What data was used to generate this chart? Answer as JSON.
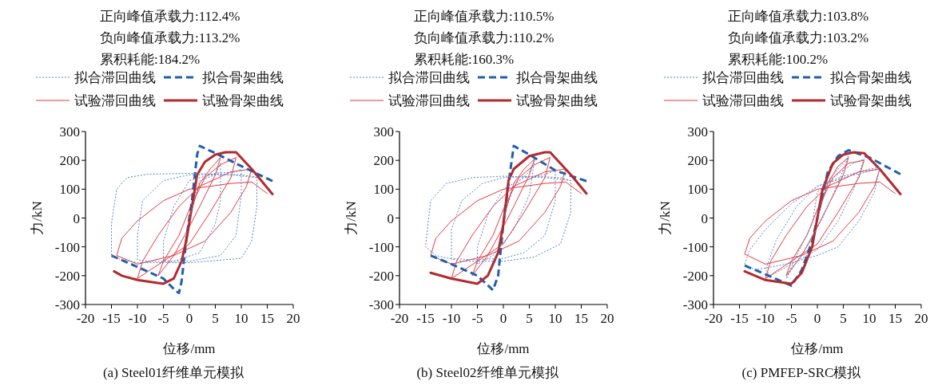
{
  "chart_data": [
    {
      "type": "line",
      "title": "(a) Steel01纤维单元模拟",
      "xlabel": "位移/mm",
      "ylabel": "力/kN",
      "annotations": [
        "正向峰值承载力:112.4%",
        "负向峰值承载力:113.2%",
        "累积耗能:184.2%"
      ],
      "xlim": [
        -20,
        20
      ],
      "ylim": [
        -300,
        300
      ],
      "xticks": [
        -20,
        -15,
        -10,
        -5,
        0,
        5,
        10,
        15,
        20
      ],
      "yticks": [
        -300,
        -200,
        -100,
        0,
        100,
        200,
        300
      ],
      "legend": "top",
      "series": [
        {
          "name": "拟合滞回曲线",
          "color": "#5b82c4",
          "line_style": "dotted",
          "x": [
            0,
            2,
            5,
            6,
            6,
            5,
            2,
            -3,
            -5,
            -5,
            -3,
            0,
            5,
            9,
            10,
            10,
            9,
            6,
            0,
            -8,
            -10,
            -10,
            -9,
            -5,
            0,
            10,
            12,
            13,
            13,
            12,
            10,
            0,
            -10,
            -14,
            -15,
            -15,
            -14,
            -12,
            -8,
            0,
            8,
            13
          ],
          "values": [
            0,
            130,
            150,
            190,
            60,
            -20,
            -120,
            -150,
            -150,
            -80,
            40,
            130,
            155,
            160,
            170,
            80,
            -60,
            -130,
            -150,
            -150,
            -145,
            -60,
            60,
            130,
            150,
            150,
            145,
            140,
            40,
            -80,
            -140,
            -155,
            -155,
            -140,
            -130,
            -20,
            100,
            140,
            152,
            155,
            150,
            140
          ]
        },
        {
          "name": "拟合骨架曲线",
          "color": "#1f5fad",
          "line_style": "dashed",
          "x": [
            -15,
            -10,
            -5,
            -2.5,
            -2,
            -1.5,
            -0.5,
            0.5,
            1.5,
            2,
            5,
            10,
            16
          ],
          "values": [
            -130,
            -170,
            -210,
            -255,
            -260,
            -220,
            -60,
            60,
            220,
            250,
            225,
            180,
            128
          ]
        },
        {
          "name": "试验滞回曲线",
          "color": "#e8393f",
          "line_style": "solid",
          "x": [
            0,
            2,
            4,
            6,
            5,
            2,
            0,
            -3,
            -6,
            -5,
            -2,
            0,
            3,
            6,
            9,
            8,
            4,
            0,
            -5,
            -10,
            -9,
            -6,
            -2,
            2,
            8,
            12,
            11,
            8,
            3,
            -3,
            -10,
            -14,
            -13,
            -10,
            -5,
            0,
            8,
            12,
            15
          ],
          "values": [
            0,
            120,
            170,
            210,
            150,
            40,
            -30,
            -130,
            -200,
            -150,
            -60,
            30,
            140,
            185,
            210,
            140,
            20,
            -90,
            -150,
            -210,
            -150,
            -60,
            40,
            110,
            160,
            170,
            110,
            20,
            -80,
            -130,
            -160,
            -130,
            -70,
            -10,
            60,
            100,
            120,
            125,
            85
          ]
        },
        {
          "name": "试验骨架曲线",
          "color": "#b22a2e",
          "line_style": "solid",
          "x": [
            -14.5,
            -13,
            -10,
            -5,
            -3,
            -1.5,
            -0.5,
            0.5,
            1.5,
            3,
            5,
            7,
            9,
            12,
            16
          ],
          "values": [
            -185,
            -200,
            -215,
            -228,
            -210,
            -150,
            -70,
            40,
            150,
            195,
            220,
            228,
            228,
            170,
            83
          ]
        }
      ]
    },
    {
      "type": "line",
      "title": "(b) Steel02纤维单元模拟",
      "xlabel": "位移/mm",
      "ylabel": "力/kN",
      "annotations": [
        "正向峰值承载力:110.5%",
        "负向峰值承载力:110.2%",
        "累积耗能:160.3%"
      ],
      "xlim": [
        -20,
        20
      ],
      "ylim": [
        -300,
        300
      ],
      "xticks": [
        -20,
        -15,
        -10,
        -5,
        0,
        5,
        10,
        15,
        20
      ],
      "yticks": [
        -300,
        -200,
        -100,
        0,
        100,
        200,
        300
      ],
      "legend": "top",
      "series": [
        {
          "name": "拟合滞回曲线",
          "color": "#5b82c4",
          "line_style": "dotted",
          "x": [
            0,
            2,
            5,
            6,
            5,
            2,
            -2,
            -5,
            -5,
            -3,
            0,
            4,
            8,
            10,
            10,
            8,
            4,
            0,
            -6,
            -10,
            -10,
            -8,
            -4,
            0,
            6,
            11,
            13,
            13,
            11,
            6,
            0,
            -8,
            -13,
            -15,
            -14,
            -11,
            -6,
            0,
            8,
            13
          ],
          "values": [
            0,
            110,
            160,
            200,
            80,
            -40,
            -130,
            -160,
            -100,
            10,
            100,
            140,
            150,
            165,
            60,
            -60,
            -120,
            -140,
            -145,
            -140,
            -40,
            60,
            120,
            140,
            145,
            140,
            130,
            20,
            -90,
            -135,
            -150,
            -150,
            -130,
            -100,
            60,
            120,
            140,
            145,
            140,
            130
          ]
        },
        {
          "name": "拟合骨架曲线",
          "color": "#1f5fad",
          "line_style": "dashed",
          "x": [
            -14,
            -10,
            -5,
            -2,
            -1,
            0,
            1,
            2,
            5,
            10,
            16
          ],
          "values": [
            -130,
            -160,
            -200,
            -250,
            -200,
            -20,
            120,
            250,
            220,
            165,
            128
          ]
        },
        {
          "name": "试验滞回曲线",
          "color": "#e8393f",
          "line_style": "solid",
          "x": [
            0,
            2,
            4,
            6,
            5,
            2,
            0,
            -3,
            -6,
            -5,
            -2,
            0,
            3,
            6,
            9,
            8,
            4,
            0,
            -5,
            -10,
            -9,
            -6,
            -2,
            2,
            8,
            12,
            11,
            8,
            3,
            -3,
            -10,
            -14,
            -13,
            -10,
            -5,
            0,
            8,
            12,
            15
          ],
          "values": [
            0,
            120,
            170,
            205,
            150,
            40,
            -30,
            -130,
            -200,
            -150,
            -60,
            30,
            140,
            185,
            210,
            140,
            20,
            -90,
            -150,
            -210,
            -150,
            -60,
            40,
            110,
            160,
            170,
            110,
            20,
            -80,
            -130,
            -160,
            -130,
            -70,
            -10,
            60,
            100,
            120,
            125,
            85
          ]
        },
        {
          "name": "试验骨架曲线",
          "color": "#b22a2e",
          "line_style": "solid",
          "x": [
            -14,
            -10,
            -5,
            -3,
            -1,
            0,
            1,
            2,
            5,
            8,
            9,
            13,
            16
          ],
          "values": [
            -190,
            -210,
            -228,
            -200,
            -120,
            -20,
            130,
            170,
            215,
            228,
            228,
            150,
            85
          ]
        }
      ]
    },
    {
      "type": "line",
      "title": "(c) PMFEP-SRC模拟",
      "xlabel": "位移/mm",
      "ylabel": "力/kN",
      "annotations": [
        "正向峰值承载力:103.8%",
        "负向峰值承载力:103.2%",
        "累积耗能:100.2%"
      ],
      "xlim": [
        -20,
        20
      ],
      "ylim": [
        -300,
        300
      ],
      "xticks": [
        -20,
        -15,
        -10,
        -5,
        0,
        5,
        10,
        15,
        20
      ],
      "yticks": [
        -300,
        -200,
        -100,
        0,
        100,
        200,
        300
      ],
      "legend": "top",
      "series": [
        {
          "name": "拟合滞回曲线",
          "color": "#5b82c4",
          "line_style": "dotted",
          "x": [
            0,
            2,
            5,
            6,
            4,
            1,
            -2,
            -5,
            -6,
            -4,
            -1,
            0,
            3,
            7,
            9,
            7,
            4,
            0,
            -4,
            -9,
            -10,
            -8,
            -4,
            0,
            5,
            10,
            12,
            11,
            8,
            4,
            0,
            -6,
            -12,
            -14,
            -13,
            -10,
            -5,
            0,
            6,
            12
          ],
          "values": [
            0,
            130,
            190,
            215,
            120,
            0,
            -100,
            -180,
            -210,
            -130,
            -20,
            90,
            140,
            190,
            205,
            100,
            -10,
            -110,
            -150,
            -200,
            -180,
            -80,
            40,
            110,
            145,
            170,
            175,
            90,
            -10,
            -100,
            -130,
            -160,
            -180,
            -160,
            -110,
            -40,
            50,
            110,
            145,
            170
          ]
        },
        {
          "name": "拟合骨架曲线",
          "color": "#1f5fad",
          "line_style": "dashed",
          "x": [
            -14,
            -10,
            -5,
            -3,
            -1,
            1,
            2,
            4,
            6,
            10,
            16
          ],
          "values": [
            -165,
            -195,
            -235,
            -180,
            -80,
            80,
            160,
            215,
            235,
            210,
            152
          ]
        },
        {
          "name": "试验滞回曲线",
          "color": "#e8393f",
          "line_style": "solid",
          "x": [
            0,
            2,
            4,
            6,
            5,
            2,
            0,
            -3,
            -6,
            -5,
            -2,
            0,
            3,
            6,
            9,
            8,
            4,
            0,
            -5,
            -10,
            -9,
            -6,
            -2,
            2,
            8,
            12,
            11,
            8,
            3,
            -3,
            -10,
            -14,
            -13,
            -10,
            -5,
            0,
            8,
            12,
            15
          ],
          "values": [
            0,
            120,
            180,
            210,
            150,
            40,
            -30,
            -130,
            -200,
            -150,
            -60,
            30,
            140,
            190,
            200,
            140,
            20,
            -90,
            -150,
            -210,
            -150,
            -60,
            40,
            110,
            160,
            170,
            110,
            20,
            -80,
            -130,
            -160,
            -125,
            -70,
            -10,
            60,
            100,
            120,
            125,
            85
          ]
        },
        {
          "name": "试验骨架曲线",
          "color": "#b22a2e",
          "line_style": "solid",
          "x": [
            -14,
            -10,
            -5,
            -3,
            -1,
            1,
            3,
            5,
            7,
            9,
            12,
            16
          ],
          "values": [
            -185,
            -215,
            -228,
            -190,
            -100,
            100,
            190,
            220,
            228,
            225,
            170,
            83
          ]
        }
      ]
    }
  ]
}
